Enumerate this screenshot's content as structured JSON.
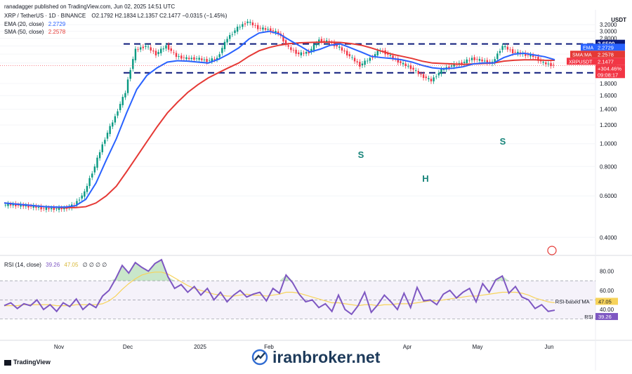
{
  "header": {
    "publisher": "ranadagger published on TradingView.com, Jun 02, 2025 14:51 UTC",
    "symbol": "XRP / TetherUS · 1D · BINANCE",
    "ohlc": "O2.1792  H2.1834  L2.1357  C2.1477  −0.0315 (−1.45%)",
    "ema_label": "EMA (20, close)",
    "ema_value": "2.2729",
    "sma_label": "SMA (50, close)",
    "sma_value": "2.2578",
    "currency": "USDT"
  },
  "rsi_header": {
    "label": "RSI (14, close)",
    "value1": "39.26",
    "value2": "47.05",
    "tail": "∅  ∅ ∅  ∅"
  },
  "footer": {
    "tv": "TradingView",
    "watermark": "iranbroker.net"
  },
  "colors": {
    "up": "#089981",
    "down": "#f23645",
    "ema": "#2962ff",
    "sma": "#e53935",
    "rsi": "#7e57c2",
    "rsi_ma": "#f7d35a",
    "level": "#0c1a7a"
  },
  "chart_data": [
    {
      "type": "line",
      "title": "XRP / TetherUS · 1D · BINANCE",
      "y_scale": "log",
      "ylim": [
        0.34,
        3.65
      ],
      "x_ticks": [
        "Nov",
        "Dec",
        "2025",
        "Feb",
        "Apr",
        "May",
        "Jun"
      ],
      "y_ticks": [
        "3.2000",
        "3.0000",
        "2.8000",
        "2.6000",
        "2.4000",
        "2.2000",
        "1.8000",
        "1.6000",
        "1.4000",
        "1.2000",
        "1.0000",
        "0.8000",
        "0.6000",
        "0.4000"
      ],
      "price_tags": [
        {
          "label": "EMA",
          "value": "2.2729",
          "color": "#2962ff"
        },
        {
          "label": "SMA:MA",
          "value": "2.2578",
          "color": "#e53935"
        },
        {
          "label": "XRPUSDT",
          "value": "2.1477",
          "color": "#f23645"
        },
        {
          "label": "",
          "value": "+304.46%",
          "color": "#f23645"
        },
        {
          "label": "",
          "value": "09:08:17",
          "color": "#f23645"
        }
      ],
      "levels": [
        {
          "value": "2.6500"
        },
        {
          "value": "2.0000"
        }
      ],
      "annotations": [
        "S",
        "H",
        "S"
      ],
      "series": [
        {
          "name": "EMA (20, close)",
          "values": [
            0.56,
            0.555,
            0.55,
            0.545,
            0.54,
            0.538,
            0.538,
            0.545,
            0.58,
            0.68,
            0.85,
            1.05,
            1.35,
            1.7,
            1.95,
            2.1,
            2.22,
            2.25,
            2.24,
            2.22,
            2.2,
            2.28,
            2.4,
            2.55,
            2.78,
            2.95,
            3.0,
            2.92,
            2.75,
            2.6,
            2.45,
            2.52,
            2.62,
            2.65,
            2.55,
            2.45,
            2.35,
            2.32,
            2.3,
            2.27,
            2.22,
            2.15,
            2.1,
            2.08,
            2.09,
            2.12,
            2.18,
            2.2,
            2.2,
            2.32,
            2.4,
            2.42,
            2.38,
            2.34,
            2.2729
          ]
        },
        {
          "name": "SMA (50, close)",
          "values": [
            0.56,
            0.555,
            0.55,
            0.545,
            0.54,
            0.537,
            0.535,
            0.535,
            0.54,
            0.56,
            0.6,
            0.66,
            0.76,
            0.88,
            1.02,
            1.18,
            1.35,
            1.5,
            1.65,
            1.78,
            1.9,
            2.0,
            2.1,
            2.2,
            2.35,
            2.48,
            2.56,
            2.62,
            2.66,
            2.68,
            2.69,
            2.7,
            2.7,
            2.69,
            2.66,
            2.62,
            2.55,
            2.47,
            2.4,
            2.35,
            2.3,
            2.24,
            2.2,
            2.19,
            2.18,
            2.17,
            2.18,
            2.19,
            2.2,
            2.24,
            2.26,
            2.27,
            2.27,
            2.26,
            2.2578
          ]
        },
        {
          "name": "XRPUSDT",
          "values": [
            0.55,
            0.55,
            0.545,
            0.54,
            0.53,
            0.53,
            0.53,
            0.55,
            0.62,
            0.8,
            1.05,
            1.3,
            1.65,
            2.5,
            2.6,
            2.4,
            2.6,
            2.35,
            2.3,
            2.3,
            2.25,
            2.3,
            2.8,
            3.1,
            3.3,
            3.1,
            3.05,
            2.95,
            2.55,
            2.4,
            2.45,
            2.75,
            2.7,
            2.55,
            2.35,
            2.15,
            2.3,
            2.5,
            2.35,
            2.2,
            2.1,
            1.95,
            1.85,
            2.05,
            2.15,
            2.2,
            2.3,
            2.25,
            2.2,
            2.6,
            2.45,
            2.4,
            2.35,
            2.2,
            2.1477
          ]
        }
      ]
    },
    {
      "type": "line",
      "title": "RSI (14, close)",
      "ylim": [
        10,
        95
      ],
      "y_ticks": [
        "80.00",
        "60.00",
        "40.00"
      ],
      "bands": [
        70,
        50,
        30
      ],
      "price_tags": [
        {
          "label": "RSI-based MA",
          "value": "47.05",
          "color": "#f7d35a"
        },
        {
          "label": "RSI",
          "value": "39.26",
          "color": "#7e57c2"
        }
      ],
      "series": [
        {
          "name": "RSI",
          "values": [
            44,
            47,
            41,
            46,
            44,
            50,
            40,
            45,
            38,
            47,
            43,
            51,
            40,
            46,
            42,
            54,
            60,
            72,
            86,
            78,
            89,
            84,
            80,
            88,
            92,
            74,
            62,
            66,
            58,
            64,
            55,
            62,
            50,
            58,
            48,
            55,
            60,
            53,
            56,
            58,
            49,
            62,
            57,
            76,
            68,
            56,
            48,
            50,
            42,
            46,
            38,
            55,
            40,
            35,
            44,
            58,
            37,
            45,
            55,
            48,
            40,
            57,
            42,
            63,
            49,
            50,
            45,
            56,
            60,
            52,
            58,
            62,
            48,
            67,
            58,
            71,
            75,
            57,
            64,
            53,
            50,
            41,
            45,
            38,
            39.26
          ]
        },
        {
          "name": "RSI-based MA",
          "values": [
            44,
            44,
            44,
            45,
            45,
            45,
            45,
            45,
            44,
            44,
            44,
            45,
            45,
            45,
            45,
            46,
            49,
            54,
            61,
            67,
            72,
            76,
            78,
            79,
            79,
            77,
            73,
            69,
            65,
            62,
            60,
            58,
            56,
            55,
            54,
            54,
            55,
            56,
            55,
            55,
            54,
            55,
            56,
            58,
            58,
            57,
            55,
            53,
            51,
            49,
            47,
            47,
            46,
            45,
            44,
            45,
            45,
            44,
            45,
            45,
            46,
            46,
            46,
            47,
            48,
            49,
            49,
            50,
            51,
            52,
            53,
            54,
            54,
            55,
            56,
            57,
            58,
            58,
            58,
            57,
            55,
            52,
            50,
            48,
            47.05
          ]
        }
      ]
    }
  ]
}
